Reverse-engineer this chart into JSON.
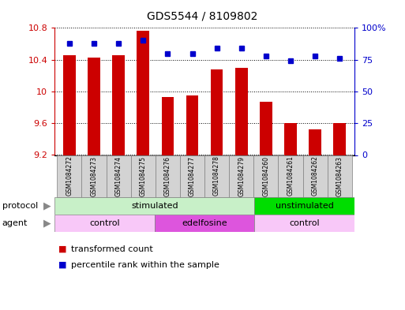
{
  "title": "GDS5544 / 8109802",
  "samples": [
    "GSM1084272",
    "GSM1084273",
    "GSM1084274",
    "GSM1084275",
    "GSM1084276",
    "GSM1084277",
    "GSM1084278",
    "GSM1084279",
    "GSM1084260",
    "GSM1084261",
    "GSM1084262",
    "GSM1084263"
  ],
  "transformed_count": [
    10.46,
    10.43,
    10.46,
    10.76,
    9.93,
    9.95,
    10.28,
    10.3,
    9.87,
    9.6,
    9.52,
    9.6
  ],
  "percentile_rank": [
    88,
    88,
    88,
    90,
    80,
    80,
    84,
    84,
    78,
    74,
    78,
    76
  ],
  "ylim_left": [
    9.2,
    10.8
  ],
  "ylim_right": [
    0,
    100
  ],
  "yticks_left": [
    9.2,
    9.6,
    10.0,
    10.4,
    10.8
  ],
  "ytick_labels_left": [
    "9.2",
    "9.6",
    "10",
    "10.4",
    "10.8"
  ],
  "yticks_right": [
    0,
    25,
    50,
    75,
    100
  ],
  "ytick_labels_right": [
    "0",
    "25",
    "50",
    "75",
    "100%"
  ],
  "bar_color": "#cc0000",
  "dot_color": "#0000cc",
  "bar_width": 0.5,
  "protocol_labels": [
    {
      "label": "stimulated",
      "start": 0,
      "end": 8,
      "color": "#c8f0c8"
    },
    {
      "label": "unstimulated",
      "start": 8,
      "end": 12,
      "color": "#00dd00"
    }
  ],
  "agent_labels": [
    {
      "label": "control",
      "start": 0,
      "end": 4,
      "color": "#f8c8f8"
    },
    {
      "label": "edelfosine",
      "start": 4,
      "end": 8,
      "color": "#dd55dd"
    },
    {
      "label": "control",
      "start": 8,
      "end": 12,
      "color": "#f8c8f8"
    }
  ],
  "legend_items": [
    {
      "label": "transformed count",
      "color": "#cc0000"
    },
    {
      "label": "percentile rank within the sample",
      "color": "#0000cc"
    }
  ],
  "sample_box_color": "#d3d3d3",
  "arrow_color": "#888888",
  "grid_linestyle": ":",
  "grid_color": "black",
  "left_axis_color": "#cc0000",
  "right_axis_color": "#0000cc",
  "title_fontsize": 10,
  "axis_fontsize": 8,
  "legend_fontsize": 8,
  "sample_fontsize": 5.5
}
